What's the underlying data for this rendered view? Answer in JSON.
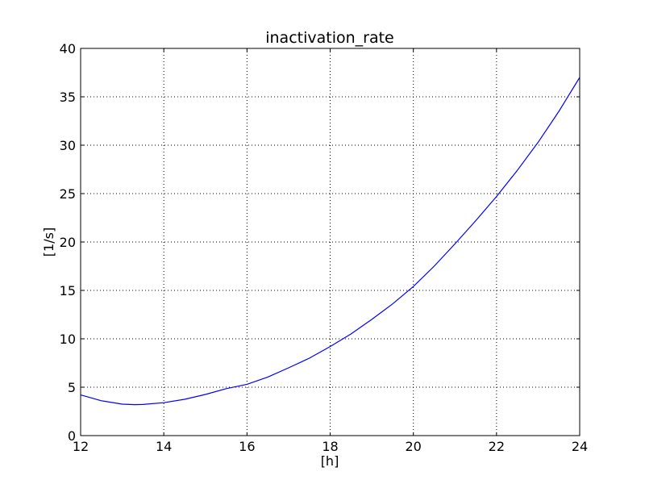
{
  "chart_data": {
    "type": "line",
    "title": "inactivation_rate",
    "xlabel": "[h]",
    "ylabel": "[1/s]",
    "xlim": [
      12,
      24
    ],
    "ylim": [
      0,
      40
    ],
    "xticks": [
      12,
      14,
      16,
      18,
      20,
      22,
      24
    ],
    "yticks": [
      0,
      5,
      10,
      15,
      20,
      25,
      30,
      35,
      40
    ],
    "grid": true,
    "series_color": "#0000ff",
    "series": [
      {
        "x": [
          12,
          12.5,
          13,
          13.3,
          13.5,
          14,
          14.5,
          15,
          15.5,
          16,
          16.5,
          17,
          17.5,
          18,
          18.5,
          19,
          19.5,
          20,
          20.5,
          21,
          21.5,
          22,
          22.5,
          23,
          23.5,
          24
        ],
        "y": [
          4.2,
          3.6,
          3.25,
          3.2,
          3.22,
          3.4,
          3.75,
          4.25,
          4.85,
          5.3,
          6.05,
          7.0,
          8.0,
          9.2,
          10.5,
          12.0,
          13.6,
          15.4,
          17.5,
          19.8,
          22.2,
          24.7,
          27.4,
          30.3,
          33.5,
          37.0
        ]
      }
    ]
  }
}
